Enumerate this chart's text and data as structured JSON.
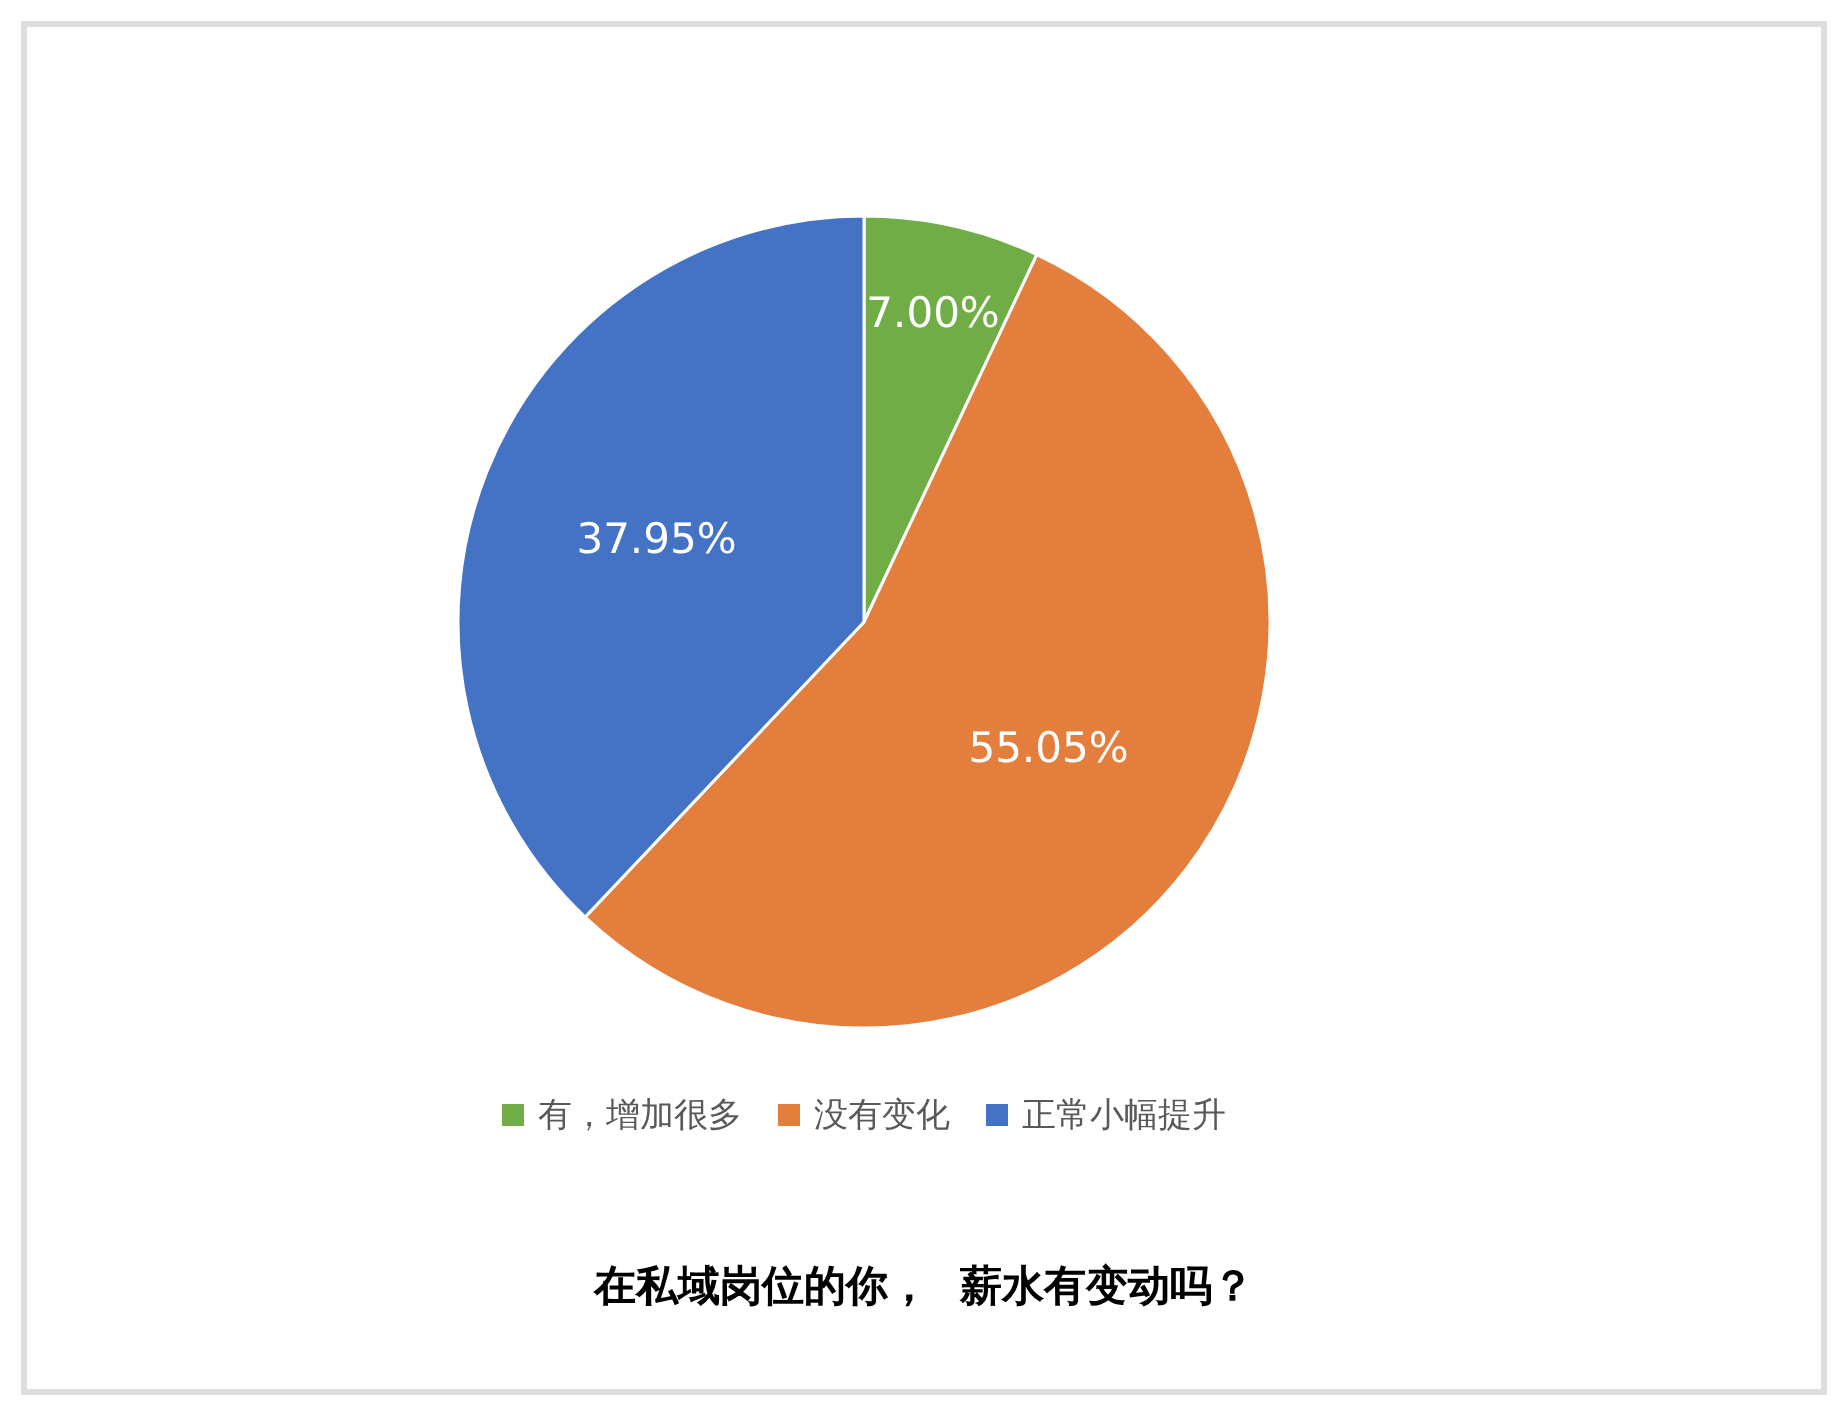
{
  "chart_data": {
    "type": "pie",
    "title": "在私域岗位的你，  薪水有变动吗？",
    "categories": [
      "有，增加很多",
      "没有变化",
      "正常小幅提升"
    ],
    "values": [
      7.0,
      55.05,
      37.95
    ],
    "colors": [
      "#70ad47",
      "#e47e3d",
      "#4472c4"
    ],
    "value_labels": [
      "7.00%",
      "55.05%",
      "37.95%"
    ],
    "legend": "bottom"
  }
}
